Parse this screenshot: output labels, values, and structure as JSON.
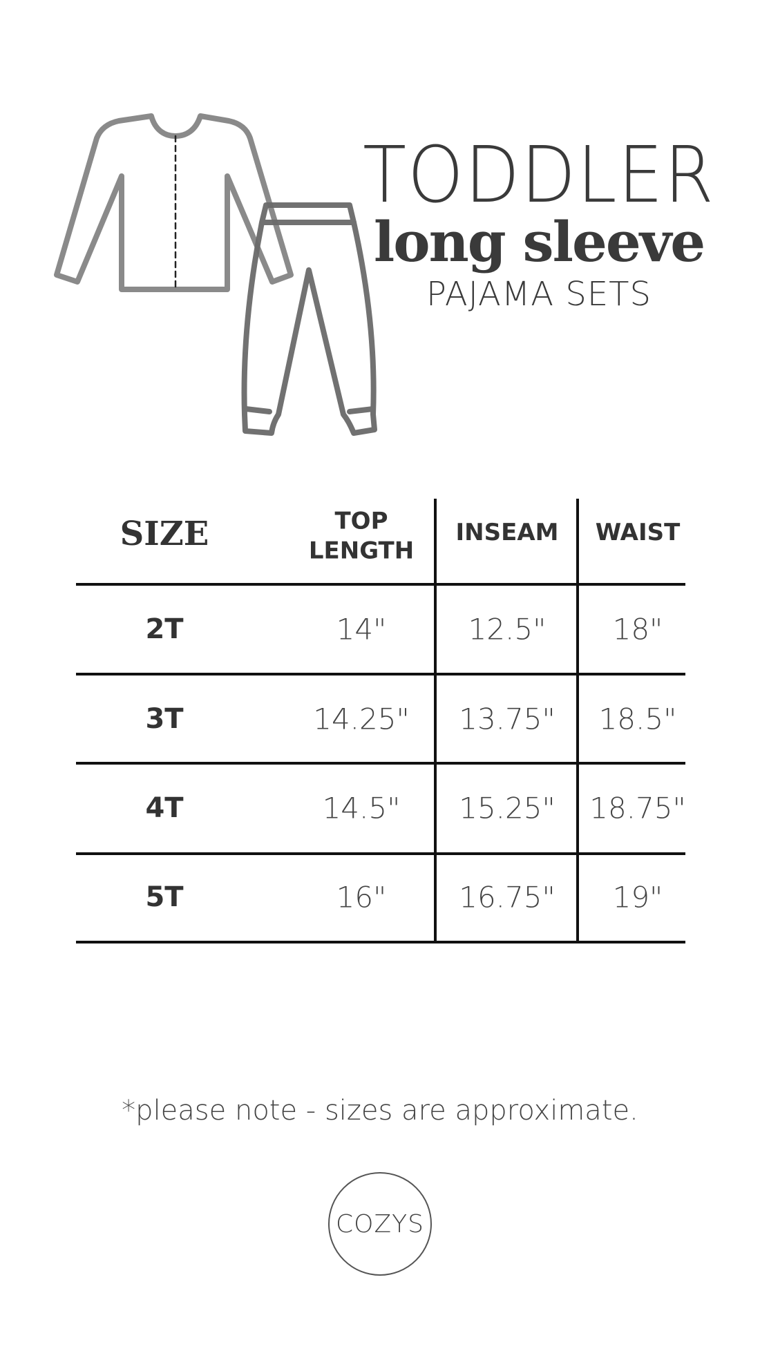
{
  "header": {
    "line1": "TODDLER",
    "line2": "long sleeve",
    "line3": "PAJAMA SETS"
  },
  "illustration": {
    "icons": [
      "long-sleeve-top-icon",
      "pajama-pants-icon"
    ]
  },
  "table": {
    "headers": [
      "SIZE",
      "TOP",
      "LENGTH",
      "INSEAM",
      "WAIST"
    ],
    "rows": [
      {
        "size": "2T",
        "top_length": "14\"",
        "inseam": "12.5\"",
        "waist": "18\""
      },
      {
        "size": "3T",
        "top_length": "14.25\"",
        "inseam": "13.75\"",
        "waist": "18.5\""
      },
      {
        "size": "4T",
        "top_length": "14.5\"",
        "inseam": "15.25\"",
        "waist": "18.75\""
      },
      {
        "size": "5T",
        "top_length": "16\"",
        "inseam": "16.75\"",
        "waist": "19\""
      }
    ]
  },
  "note": "*please note - sizes are approximate.",
  "logo": "COZYS",
  "colors": {
    "text": "#3a3a3a",
    "lines": "#111111",
    "top_outline": "#8a8a8a",
    "pants_outline": "#6a6a6a"
  }
}
